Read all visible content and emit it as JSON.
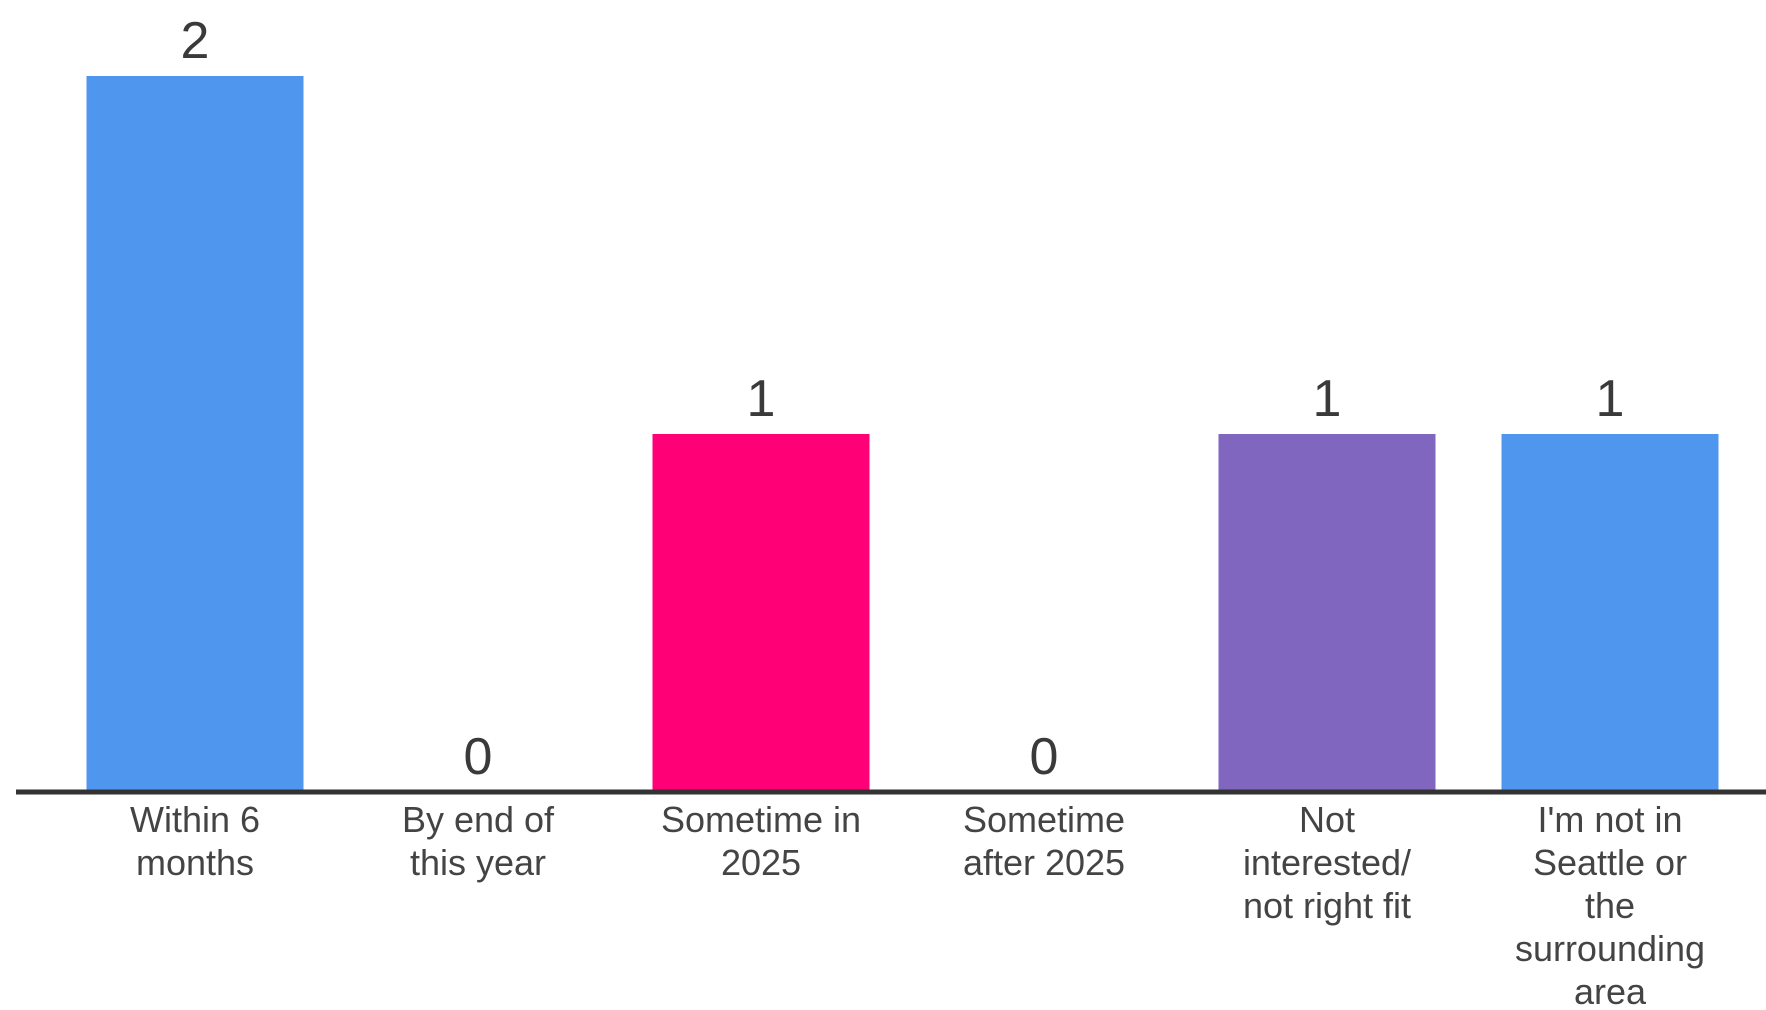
{
  "chart_data": {
    "type": "bar",
    "categories": [
      [
        "Within 6",
        "months"
      ],
      [
        "By end of",
        "this year"
      ],
      [
        "Sometime in",
        "2025"
      ],
      [
        "Sometime",
        "after 2025"
      ],
      [
        "Not",
        "interested/",
        "not right fit"
      ],
      [
        "I'm not in",
        "Seattle or",
        "the",
        "surrounding",
        "area"
      ]
    ],
    "values": [
      2,
      0,
      1,
      0,
      1,
      1
    ],
    "colors": [
      "#4f97ee",
      "#4f97ee",
      "#ff0077",
      "#4f97ee",
      "#8166c0",
      "#4f97ee"
    ],
    "title": "",
    "xlabel": "",
    "ylabel": "",
    "ylim": [
      0,
      2
    ],
    "grid": false,
    "axis_color": "#333333"
  }
}
